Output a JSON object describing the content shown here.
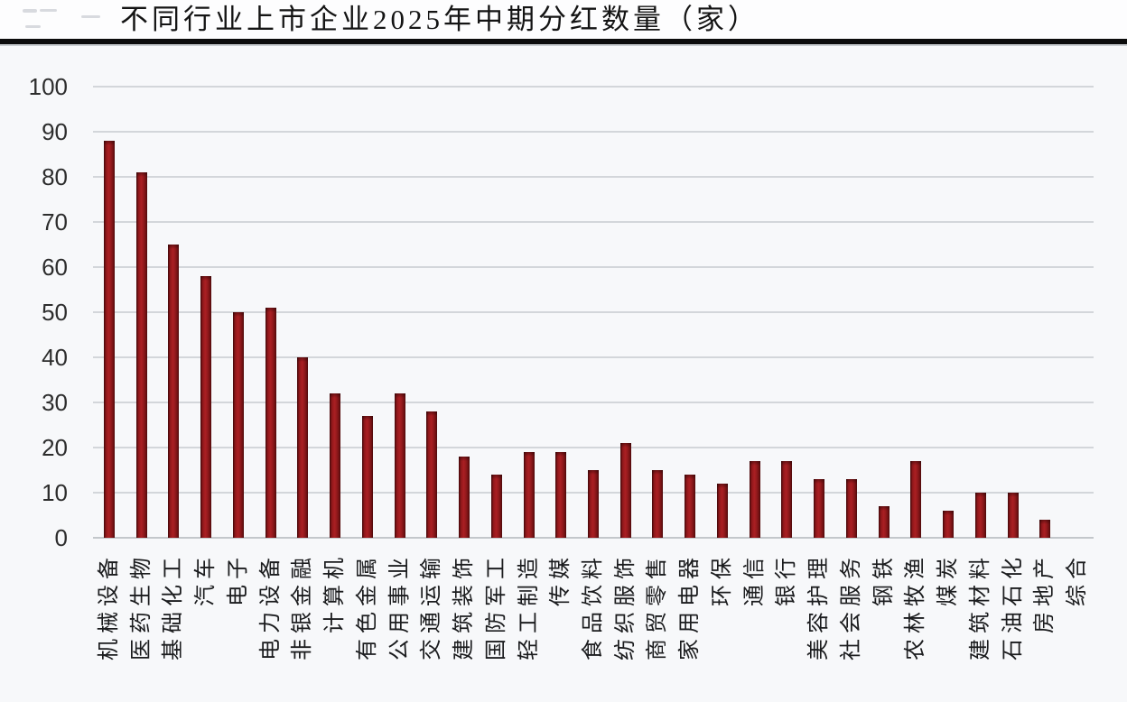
{
  "title": "不同行业上市企业2025年中期分红数量（家）",
  "chart_data": {
    "type": "bar",
    "title": "不同行业上市企业2025年中期分红数量（家）",
    "categories": [
      "机械设备",
      "医药生物",
      "基础化工",
      "汽车",
      "电子",
      "电力设备",
      "非银金融",
      "计算机",
      "有色金属",
      "公用事业",
      "交通运输",
      "建筑装饰",
      "国防军工",
      "轻工制造",
      "传媒",
      "食品饮料",
      "纺织服饰",
      "商贸零售",
      "家用电器",
      "环保",
      "通信",
      "银行",
      "美容护理",
      "社会服务",
      "钢铁",
      "农林牧渔",
      "煤炭",
      "建筑材料",
      "石油石化",
      "房地产",
      "综合"
    ],
    "values": [
      88,
      81,
      65,
      58,
      50,
      51,
      40,
      32,
      27,
      32,
      28,
      18,
      14,
      19,
      19,
      15,
      21,
      15,
      14,
      12,
      17,
      17,
      13,
      13,
      7,
      17,
      6,
      10,
      10,
      4,
      0
    ],
    "xlabel": "",
    "ylabel": "",
    "ylim": [
      0,
      100
    ],
    "ytick_step": 10,
    "grid": true,
    "legend": "none",
    "bar_color": "#9E1C20",
    "gridline_color": "#d3d6da",
    "axis_text_color": "#2d2d2d",
    "title_color": "#141414"
  }
}
